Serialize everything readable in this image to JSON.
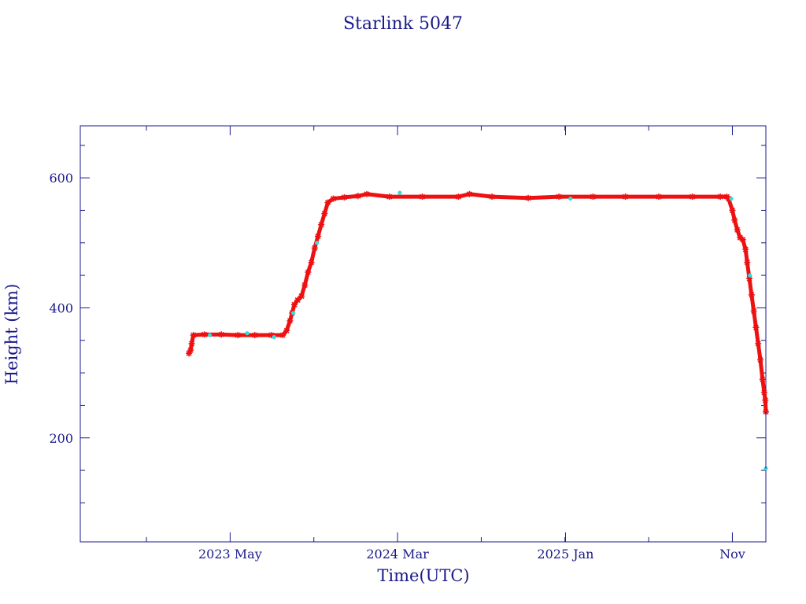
{
  "colors": {
    "frame": "#1a1a8c",
    "text": "#1a1a8c",
    "series_main": "#ee1111",
    "series_alt": "#33dddd"
  },
  "chart_data": {
    "type": "scatter",
    "title": "Starlink 5047",
    "xlabel": "Time(UTC)",
    "ylabel": "Height (km)",
    "xlim": [
      "2022-08-01",
      "2026-01-01"
    ],
    "ylim": [
      40,
      680
    ],
    "x_ticks": [
      {
        "date": "2023-05-01",
        "label": "2023 May"
      },
      {
        "date": "2024-03-01",
        "label": "2024 Mar"
      },
      {
        "date": "2025-01-01",
        "label": "2025 Jan"
      },
      {
        "date": "2025-11-01",
        "label": "Nov"
      }
    ],
    "y_ticks": [
      200,
      400,
      600
    ],
    "grid": false,
    "series": [
      {
        "marker": "asterisk",
        "color": "series_main",
        "points": [
          [
            "2023-02-15",
            330
          ],
          [
            "2023-02-18",
            335
          ],
          [
            "2023-02-20",
            345
          ],
          [
            "2023-02-23",
            358
          ],
          [
            "2023-03-15",
            359
          ],
          [
            "2023-04-15",
            359
          ],
          [
            "2023-05-15",
            358
          ],
          [
            "2023-06-15",
            358
          ],
          [
            "2023-07-15",
            358
          ],
          [
            "2023-08-05",
            358
          ],
          [
            "2023-08-12",
            365
          ],
          [
            "2023-08-18",
            380
          ],
          [
            "2023-08-22",
            392
          ],
          [
            "2023-08-26",
            405
          ],
          [
            "2023-09-01",
            412
          ],
          [
            "2023-09-08",
            418
          ],
          [
            "2023-09-14",
            435
          ],
          [
            "2023-09-20",
            455
          ],
          [
            "2023-09-26",
            470
          ],
          [
            "2023-10-02",
            492
          ],
          [
            "2023-10-08",
            510
          ],
          [
            "2023-10-14",
            528
          ],
          [
            "2023-10-20",
            545
          ],
          [
            "2023-10-26",
            562
          ],
          [
            "2023-11-05",
            568
          ],
          [
            "2023-11-25",
            570
          ],
          [
            "2023-12-20",
            572
          ],
          [
            "2024-01-05",
            575
          ],
          [
            "2024-02-15",
            571
          ],
          [
            "2024-04-15",
            571
          ],
          [
            "2024-06-20",
            571
          ],
          [
            "2024-07-10",
            575
          ],
          [
            "2024-08-20",
            571
          ],
          [
            "2024-10-25",
            569
          ],
          [
            "2024-12-20",
            571
          ],
          [
            "2025-02-20",
            571
          ],
          [
            "2025-04-20",
            571
          ],
          [
            "2025-06-20",
            571
          ],
          [
            "2025-08-20",
            571
          ],
          [
            "2025-10-10",
            571
          ],
          [
            "2025-10-22",
            571
          ],
          [
            "2025-10-25",
            568
          ],
          [
            "2025-11-01",
            550
          ],
          [
            "2025-11-05",
            535
          ],
          [
            "2025-11-10",
            520
          ],
          [
            "2025-11-15",
            508
          ],
          [
            "2025-11-20",
            505
          ],
          [
            "2025-11-25",
            490
          ],
          [
            "2025-11-28",
            470
          ],
          [
            "2025-12-02",
            445
          ],
          [
            "2025-12-06",
            420
          ],
          [
            "2025-12-10",
            395
          ],
          [
            "2025-12-14",
            370
          ],
          [
            "2025-12-18",
            345
          ],
          [
            "2025-12-22",
            320
          ],
          [
            "2025-12-26",
            290
          ],
          [
            "2025-12-29",
            270
          ],
          [
            "2025-12-31",
            258
          ],
          [
            "2026-01-01",
            240
          ]
        ]
      },
      {
        "marker": "dot",
        "color": "series_alt",
        "points": [
          [
            "2023-03-25",
            358
          ],
          [
            "2023-06-01",
            361
          ],
          [
            "2023-07-20",
            355
          ],
          [
            "2023-08-24",
            392
          ],
          [
            "2023-10-06",
            500
          ],
          [
            "2024-03-05",
            577
          ],
          [
            "2025-01-10",
            568
          ],
          [
            "2025-10-30",
            568
          ],
          [
            "2025-12-03",
            450
          ],
          [
            "2026-01-01",
            153
          ]
        ]
      }
    ]
  }
}
